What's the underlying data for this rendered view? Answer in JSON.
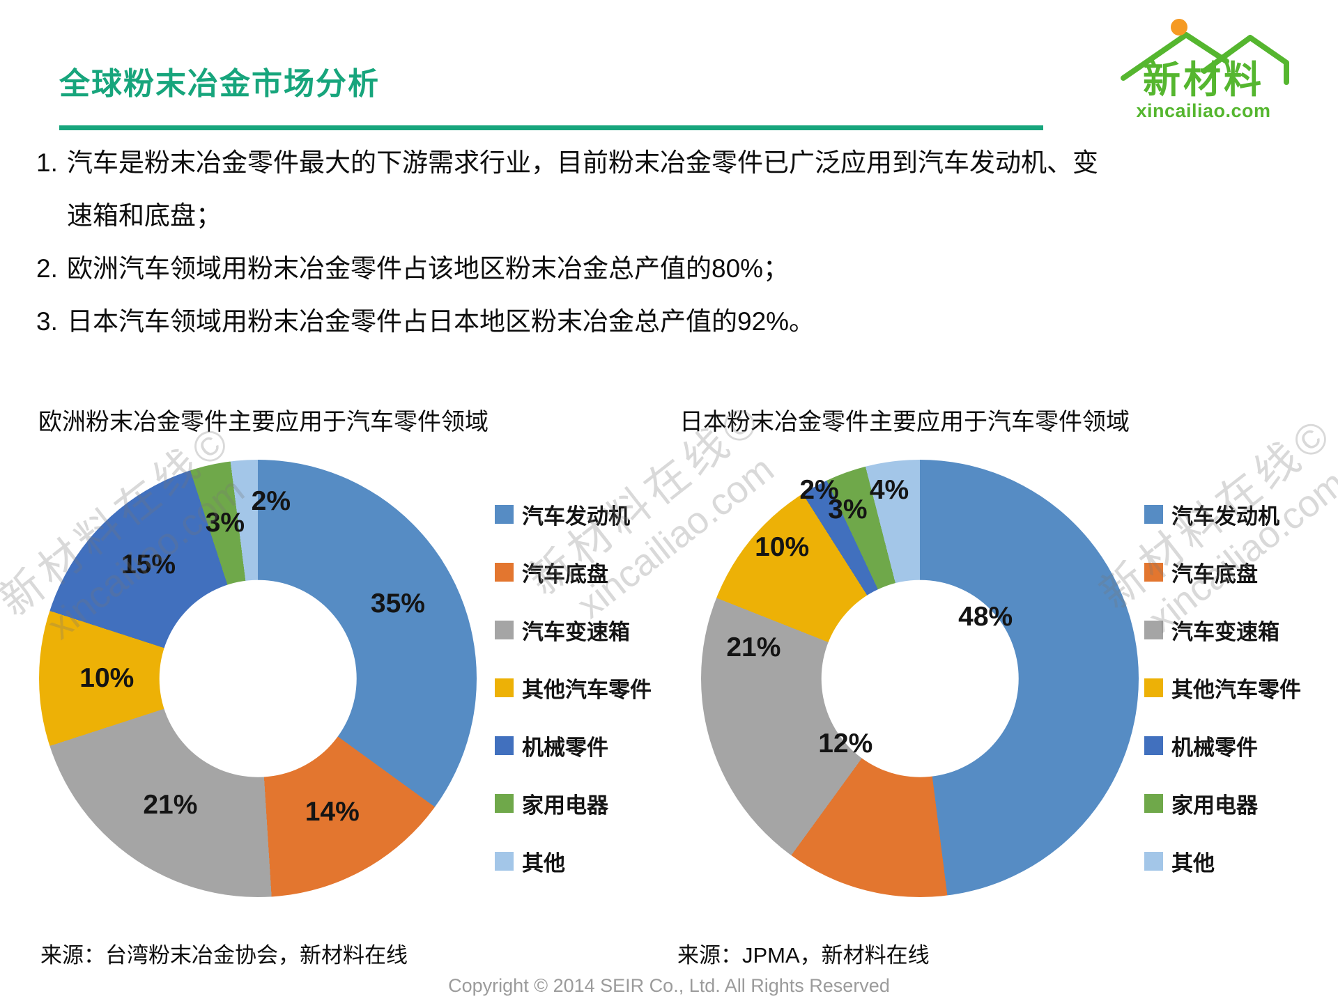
{
  "header": {
    "title": "全球粉末冶金市场分析"
  },
  "logo": {
    "name": "新材料",
    "domain": "xincailiao.com",
    "green": "#55b62f",
    "sun_orange": "#f59a23"
  },
  "bullets": [
    {
      "num": "1.",
      "text": "汽车是粉末冶金零件最大的下游需求行业，目前粉末冶金零件已广泛应用到汽车发动机、变速箱和底盘；"
    },
    {
      "num": "2.",
      "text": "欧洲汽车领域用粉末冶金零件占该地区粉末冶金总产值的80%；"
    },
    {
      "num": "3.",
      "text": "日本汽车领域用粉末冶金零件占日本地区粉末冶金总产值的92%。"
    }
  ],
  "watermark": {
    "line1": "新材料在线©",
    "line2": "xincailiao.com"
  },
  "chart_data": [
    {
      "type": "pie",
      "donut": true,
      "title": "欧洲粉末冶金零件主要应用于汽车零件领域",
      "source": "来源：台湾粉末冶金协会，新材料在线",
      "categories": [
        "汽车发动机",
        "汽车底盘",
        "汽车变速箱",
        "其他汽车零件",
        "机械零件",
        "家用电器",
        "其他"
      ],
      "values": [
        35,
        14,
        21,
        10,
        15,
        3,
        2
      ],
      "unit": "%",
      "colors": [
        "#568cc4",
        "#e3762f",
        "#a5a5a5",
        "#edb106",
        "#4170be",
        "#6fa84a",
        "#a3c6e8"
      ],
      "legend_position": "right",
      "start_angle": 0,
      "donut_hole_ratio": 0.45,
      "label_positions_pct": [
        [
          82,
          33
        ],
        [
          67,
          80.5
        ],
        [
          30,
          79
        ],
        [
          15.5,
          50
        ],
        [
          25,
          24
        ],
        [
          42.5,
          14.5
        ],
        [
          53,
          9.5
        ]
      ]
    },
    {
      "type": "pie",
      "donut": true,
      "title": "日本粉末冶金零件主要应用于汽车零件领域",
      "source": "来源：JPMA，新材料在线",
      "categories": [
        "汽车发动机",
        "汽车底盘",
        "汽车变速箱",
        "其他汽车零件",
        "机械零件",
        "家用电器",
        "其他"
      ],
      "values": [
        48,
        12,
        21,
        10,
        2,
        3,
        4
      ],
      "unit": "%",
      "colors": [
        "#568cc4",
        "#e3762f",
        "#a5a5a5",
        "#edb106",
        "#4170be",
        "#6fa84a",
        "#a3c6e8"
      ],
      "legend_position": "right",
      "start_angle": 0,
      "donut_hole_ratio": 0.45,
      "label_positions_pct": [
        [
          65,
          36
        ],
        [
          33,
          65
        ],
        [
          12,
          43
        ],
        [
          18.5,
          20
        ],
        [
          27,
          7
        ],
        [
          33.5,
          11.5
        ],
        [
          43,
          7
        ]
      ]
    }
  ],
  "footer": {
    "copyright": "Copyright © 2014 SEIR Co., Ltd. All Rights Reserved"
  }
}
